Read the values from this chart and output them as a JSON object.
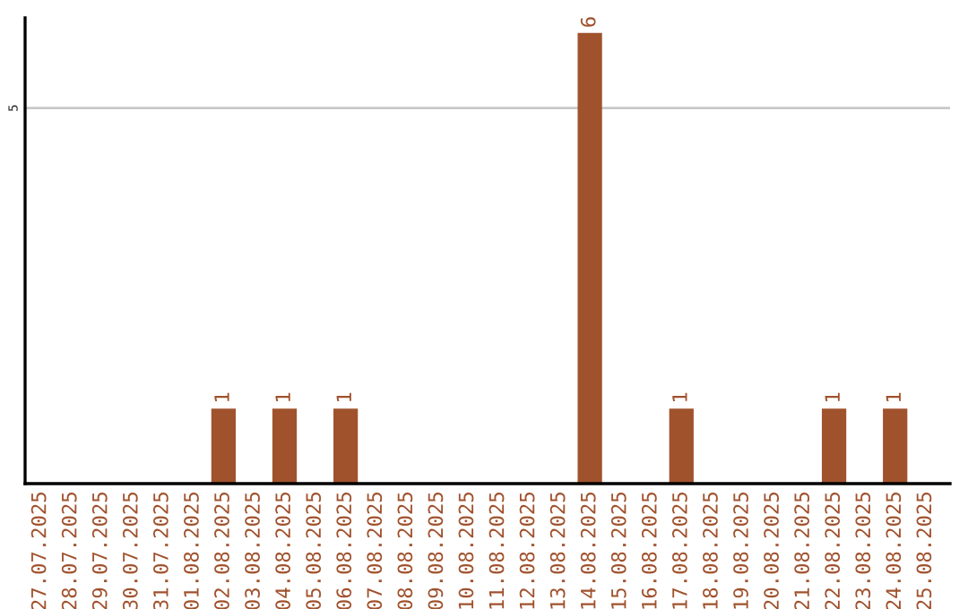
{
  "chart_data": {
    "type": "bar",
    "categories": [
      "27.07.2025",
      "28.07.2025",
      "29.07.2025",
      "30.07.2025",
      "31.07.2025",
      "01.08.2025",
      "02.08.2025",
      "03.08.2025",
      "04.08.2025",
      "05.08.2025",
      "06.08.2025",
      "07.08.2025",
      "08.08.2025",
      "09.08.2025",
      "10.08.2025",
      "11.08.2025",
      "12.08.2025",
      "13.08.2025",
      "14.08.2025",
      "15.08.2025",
      "16.08.2025",
      "17.08.2025",
      "18.08.2025",
      "19.08.2025",
      "20.08.2025",
      "21.08.2025",
      "22.08.2025",
      "23.08.2025",
      "24.08.2025",
      "25.08.2025"
    ],
    "values": [
      0,
      0,
      0,
      0,
      0,
      0,
      1,
      0,
      1,
      0,
      1,
      0,
      0,
      0,
      0,
      0,
      0,
      0,
      6,
      0,
      0,
      1,
      0,
      0,
      0,
      0,
      1,
      0,
      1,
      0
    ],
    "value_labels": [
      null,
      null,
      null,
      null,
      null,
      null,
      "1",
      null,
      "1",
      null,
      "1",
      null,
      null,
      null,
      null,
      null,
      null,
      null,
      "6",
      null,
      null,
      "1",
      null,
      null,
      null,
      null,
      "1",
      null,
      "1",
      null
    ],
    "color": "#a0522d",
    "ylim": [
      0,
      6.2
    ],
    "yticks": [
      5
    ],
    "grid": "y"
  }
}
